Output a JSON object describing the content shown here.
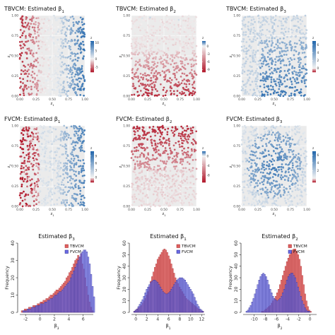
{
  "colors": {
    "diverging_low": "#b2182b",
    "diverging_mid": "#f2f2f2",
    "diverging_high": "#2166ac",
    "panel_bg": "#ebebeb",
    "tbvcm_fill": "#e06060",
    "tbvcm_stroke": "#a02020",
    "fvcm_fill": "#6a6ae6",
    "fvcm_stroke": "#20208a"
  },
  "chart_data": [
    {
      "type": "scatter",
      "title": "TBVCM: Estimated β",
      "sub": "1",
      "xlabel": "z",
      "xlabel_sub": "1",
      "ylabel": "z",
      "ylabel_sub": "2",
      "xlim": [
        0,
        1
      ],
      "ylim": [
        0,
        1
      ],
      "xticks": [
        "0.00",
        "0.25",
        "0.50",
        "0.75",
        "1.00"
      ],
      "yticks": [
        "0.00",
        "0.25",
        "0.50",
        "0.75",
        "1.00"
      ],
      "legend_title": "z",
      "colorbar_ticks": [
        10,
        5,
        0,
        -5
      ],
      "colorbar_range": [
        -8,
        11
      ],
      "pattern": "tb1",
      "n_points": 700
    },
    {
      "type": "scatter",
      "title": "TBVCM: Estimated β",
      "sub": "2",
      "xlabel": "z",
      "xlabel_sub": "1",
      "ylabel": "z",
      "ylabel_sub": "2",
      "xlim": [
        0,
        1
      ],
      "ylim": [
        0,
        1
      ],
      "xticks": [
        "0.00",
        "0.25",
        "0.50",
        "0.75",
        "1.00"
      ],
      "yticks": [
        "0.00",
        "0.25",
        "0.50",
        "0.75",
        "1.00"
      ],
      "legend_title": "z",
      "colorbar_ticks": [
        0,
        -3,
        -6,
        -9
      ],
      "colorbar_range": [
        -10,
        2
      ],
      "pattern": "tb2",
      "n_points": 700
    },
    {
      "type": "scatter",
      "title": "TBVCM: Estimated β",
      "sub": "3",
      "xlabel": "z",
      "xlabel_sub": "1",
      "ylabel": "z",
      "ylabel_sub": "2",
      "xlim": [
        0,
        1
      ],
      "ylim": [
        0,
        1
      ],
      "xticks": [
        "0.00",
        "0.25",
        "0.50",
        "0.75",
        "1.00"
      ],
      "yticks": [
        "0.00",
        "0.25",
        "0.50",
        "0.75",
        "1.00"
      ],
      "legend_title": "z",
      "colorbar_ticks": [
        6,
        4,
        2,
        0
      ],
      "colorbar_range": [
        -1,
        7
      ],
      "pattern": "tb3",
      "n_points": 700
    },
    {
      "type": "scatter",
      "title": "FVCM: Estimated β",
      "sub": "1",
      "xlabel": "z",
      "xlabel_sub": "1",
      "ylabel": "z",
      "ylabel_sub": "2",
      "xlim": [
        0,
        1
      ],
      "ylim": [
        0,
        1
      ],
      "xticks": [
        "0.00",
        "0.25",
        "0.50",
        "0.75",
        "1.00"
      ],
      "yticks": [
        "0.00",
        "0.25",
        "0.50",
        "0.75",
        "1.00"
      ],
      "legend_title": "z",
      "colorbar_ticks": [
        9,
        6,
        3,
        0
      ],
      "colorbar_range": [
        -2,
        11
      ],
      "pattern": "fv1",
      "n_points": 700
    },
    {
      "type": "scatter",
      "title": "FVCM: Estimated β",
      "sub": "2",
      "xlabel": "z",
      "xlabel_sub": "1",
      "ylabel": "z",
      "ylabel_sub": "2",
      "xlim": [
        0,
        1
      ],
      "ylim": [
        0,
        1
      ],
      "xticks": [
        "0.00",
        "0.25",
        "0.50",
        "0.75",
        "1.00"
      ],
      "yticks": [
        "0.00",
        "0.25",
        "0.50",
        "0.75",
        "1.00"
      ],
      "legend_title": "z",
      "colorbar_ticks": [
        0,
        -4,
        -8
      ],
      "colorbar_range": [
        -11,
        2
      ],
      "pattern": "fv2",
      "n_points": 700
    },
    {
      "type": "scatter",
      "title": "FVCM: Estimated β",
      "sub": "3",
      "xlabel": "z",
      "xlabel_sub": "1",
      "ylabel": "z",
      "ylabel_sub": "2",
      "xlim": [
        0,
        1
      ],
      "ylim": [
        0,
        1
      ],
      "xticks": [
        "0.00",
        "0.25",
        "0.50",
        "0.75",
        "1.00"
      ],
      "yticks": [
        "0.00",
        "0.25",
        "0.50",
        "0.75",
        "1.00"
      ],
      "legend_title": "z",
      "colorbar_ticks": [
        6,
        4,
        2
      ],
      "colorbar_range": [
        -1,
        7
      ],
      "pattern": "fv3",
      "n_points": 700
    },
    {
      "type": "bar",
      "subtype": "histogram",
      "title": "Estimated β",
      "sub": "3",
      "xlabel": "β",
      "xlabel_sub": "3",
      "ylabel": "Frequency",
      "xlim": [
        -2.8,
        7.4
      ],
      "ylim": [
        0,
        40
      ],
      "xticks": [
        -2,
        0,
        2,
        4,
        6
      ],
      "yticks": [
        0,
        10,
        20,
        30,
        40
      ],
      "legend": [
        "TBVCM",
        "FVCM"
      ],
      "legend_position": "top-right",
      "bin_start": -2.6,
      "bin_width": 0.2,
      "series": [
        {
          "name": "TBVCM",
          "values": [
            1,
            1,
            2,
            2,
            2,
            3,
            3,
            3,
            4,
            4,
            4,
            5,
            5,
            6,
            6,
            7,
            7,
            8,
            8,
            9,
            10,
            10,
            11,
            12,
            13,
            13,
            14,
            15,
            16,
            17,
            18,
            20,
            21,
            23,
            24,
            26,
            28,
            30,
            31,
            33,
            32,
            34,
            28,
            25,
            20,
            15,
            10,
            6,
            3,
            1,
            0
          ]
        },
        {
          "name": "FVCM",
          "values": [
            0,
            1,
            1,
            1,
            2,
            2,
            2,
            3,
            3,
            3,
            4,
            4,
            4,
            5,
            5,
            5,
            6,
            6,
            7,
            7,
            8,
            8,
            9,
            10,
            10,
            11,
            12,
            12,
            13,
            14,
            15,
            16,
            17,
            18,
            20,
            22,
            24,
            26,
            28,
            30,
            32,
            34,
            35,
            36,
            36,
            35,
            32,
            28,
            22,
            15,
            9
          ]
        }
      ]
    },
    {
      "type": "bar",
      "subtype": "histogram",
      "title": "Estimated β",
      "sub": "1",
      "xlabel": "β",
      "xlabel_sub": "1",
      "ylabel": "Frequency",
      "xlim": [
        -0.8,
        12.6
      ],
      "ylim": [
        0,
        60
      ],
      "xticks": [
        0,
        2,
        4,
        6,
        8,
        10,
        12
      ],
      "yticks": [
        0,
        10,
        20,
        30,
        40,
        50,
        60
      ],
      "legend": [
        "TBVCM",
        "FVCM"
      ],
      "legend_position": "top-right",
      "bin_start": -0.4,
      "bin_width": 0.25,
      "series": [
        {
          "name": "TBVCM",
          "values": [
            1,
            2,
            3,
            4,
            5,
            6,
            8,
            10,
            12,
            15,
            18,
            22,
            27,
            31,
            35,
            39,
            42,
            46,
            48,
            50,
            52,
            54,
            55,
            54,
            52,
            49,
            46,
            42,
            38,
            34,
            30,
            27,
            25,
            22,
            20,
            18,
            16,
            14,
            12,
            11,
            10,
            9,
            8,
            7,
            6,
            5,
            4,
            3,
            2,
            1,
            1
          ]
        },
        {
          "name": "FVCM",
          "values": [
            1,
            2,
            3,
            5,
            7,
            9,
            11,
            14,
            17,
            20,
            22,
            24,
            26,
            27,
            28,
            28,
            27,
            26,
            24,
            22,
            20,
            18,
            17,
            16,
            16,
            17,
            18,
            20,
            22,
            24,
            26,
            28,
            29,
            30,
            30,
            30,
            29,
            28,
            26,
            24,
            22,
            20,
            18,
            16,
            13,
            10,
            7,
            5,
            3,
            2,
            1
          ]
        }
      ]
    },
    {
      "type": "bar",
      "subtype": "histogram",
      "title": "Estimated β",
      "sub": "2",
      "xlabel": "β",
      "xlabel_sub": "2",
      "ylabel": "Frequency",
      "xlim": [
        -12,
        1.2
      ],
      "ylim": [
        0,
        60
      ],
      "xticks": [
        -10,
        -8,
        -6,
        -4,
        -2,
        0
      ],
      "yticks": [
        0,
        10,
        20,
        30,
        40,
        50,
        60
      ],
      "legend": [
        "TBVCM",
        "FVCM"
      ],
      "legend_position": "top-right",
      "bin_start": -11.5,
      "bin_width": 0.25,
      "series": [
        {
          "name": "TBVCM",
          "values": [
            0,
            0,
            0,
            0,
            0,
            0,
            0,
            0,
            0,
            0,
            0,
            1,
            1,
            2,
            3,
            4,
            5,
            6,
            8,
            10,
            12,
            14,
            17,
            20,
            24,
            28,
            32,
            36,
            40,
            44,
            47,
            50,
            52,
            54,
            55,
            55,
            53,
            50,
            46,
            40,
            32,
            24,
            16,
            10,
            5,
            2,
            1,
            0,
            0,
            0
          ]
        },
        {
          "name": "FVCM",
          "values": [
            1,
            2,
            4,
            6,
            9,
            12,
            16,
            20,
            24,
            28,
            31,
            33,
            34,
            33,
            31,
            28,
            24,
            20,
            17,
            14,
            12,
            11,
            10,
            11,
            12,
            14,
            17,
            20,
            24,
            28,
            31,
            33,
            34,
            34,
            32,
            30,
            26,
            22,
            18,
            14,
            10,
            7,
            4,
            2,
            1,
            1,
            0,
            0,
            0,
            0
          ]
        }
      ]
    }
  ]
}
